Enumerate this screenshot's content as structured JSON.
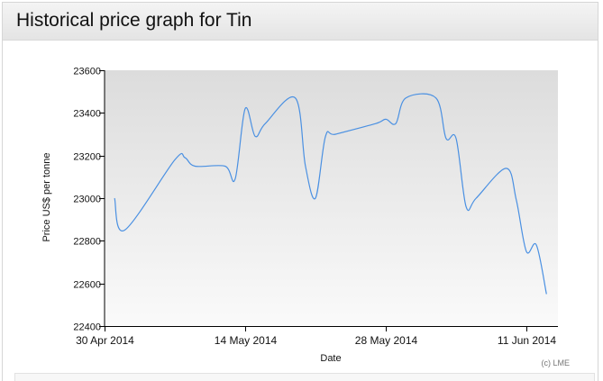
{
  "header": {
    "title": "Historical price graph for Tin"
  },
  "chart_data": {
    "type": "line",
    "title": "",
    "xlabel": "Date",
    "ylabel": "Price US$ per tonne",
    "credit": "(c) LME",
    "ylim": [
      22400,
      23600
    ],
    "y_ticks": [
      22400,
      22600,
      22800,
      23000,
      23200,
      23400,
      23600
    ],
    "x_ticks": [
      {
        "date": "2014-04-30",
        "label": "30 Apr 2014"
      },
      {
        "date": "2014-05-14",
        "label": "14 May 2014"
      },
      {
        "date": "2014-05-28",
        "label": "28 May 2014"
      },
      {
        "date": "2014-06-11",
        "label": "11 Jun 2014"
      }
    ],
    "xlim": [
      "2014-04-30",
      "2014-06-15"
    ],
    "grid": false,
    "line_color": "#4a90e2",
    "series": [
      {
        "x": [
          "2014-05-01",
          "2014-05-02",
          "2014-05-07",
          "2014-05-08",
          "2014-05-09",
          "2014-05-12",
          "2014-05-13",
          "2014-05-14",
          "2014-05-15",
          "2014-05-16",
          "2014-05-19",
          "2014-05-20",
          "2014-05-21",
          "2014-05-22",
          "2014-05-23",
          "2014-05-27",
          "2014-05-28",
          "2014-05-29",
          "2014-05-30",
          "2014-06-02",
          "2014-06-03",
          "2014-06-04",
          "2014-06-05",
          "2014-06-06",
          "2014-06-09",
          "2014-06-10",
          "2014-06-11",
          "2014-06-12",
          "2014-06-13"
        ],
        "y": [
          23000,
          22850,
          23180,
          23190,
          23150,
          23150,
          23090,
          23420,
          23290,
          23350,
          23470,
          23150,
          23000,
          23290,
          23300,
          23350,
          23370,
          23350,
          23470,
          23470,
          23280,
          23280,
          22960,
          23000,
          23140,
          22990,
          22750,
          22780,
          22550
        ]
      }
    ]
  }
}
